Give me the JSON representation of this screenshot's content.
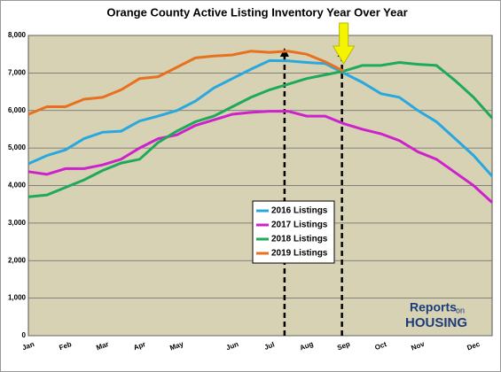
{
  "chart_data": {
    "type": "line",
    "title": "Orange County Active Listing Inventory Year Over Year",
    "categories": [
      "Jan",
      null,
      "Feb",
      null,
      "Mar",
      null,
      "Apr",
      null,
      "May",
      null,
      null,
      "Jun",
      null,
      "Jul",
      null,
      "Aug",
      null,
      "Sep",
      null,
      "Oct",
      null,
      "Nov",
      null,
      null,
      "Dec",
      null
    ],
    "series": [
      {
        "name": "2016 Listings",
        "color": "#29a8df",
        "values": [
          4580,
          4800,
          4950,
          5250,
          5420,
          5450,
          5720,
          5850,
          6000,
          6250,
          6600,
          6850,
          7100,
          7330,
          7320,
          7280,
          7250,
          7000,
          6750,
          6450,
          6350,
          6000,
          5700,
          5250,
          4800,
          4250
        ]
      },
      {
        "name": "2017 Listings",
        "color": "#cc22cc",
        "values": [
          4370,
          4300,
          4450,
          4450,
          4550,
          4700,
          5000,
          5250,
          5350,
          5600,
          5750,
          5900,
          5950,
          5980,
          5980,
          5850,
          5850,
          5650,
          5500,
          5380,
          5200,
          4900,
          4700,
          4350,
          4000,
          3550
        ]
      },
      {
        "name": "2018 Listings",
        "color": "#1eaa5a",
        "values": [
          3700,
          3750,
          3950,
          4150,
          4400,
          4600,
          4700,
          5150,
          5450,
          5700,
          5850,
          6100,
          6350,
          6550,
          6700,
          6850,
          6950,
          7050,
          7200,
          7200,
          7280,
          7230,
          7200,
          6800,
          6350,
          5800
        ]
      },
      {
        "name": "2019 Listings",
        "color": "#e8711f",
        "values": [
          5900,
          6100,
          6100,
          6300,
          6350,
          6550,
          6850,
          6900,
          7150,
          7400,
          7450,
          7480,
          7580,
          7550,
          7580,
          7500,
          7300,
          7050,
          null,
          null,
          null,
          null,
          null,
          null,
          null,
          null
        ]
      }
    ],
    "ylim": [
      0,
      8000
    ],
    "yticks": [
      0,
      {
        "value": 1000,
        "label": "1,000"
      },
      {
        "value": 2000,
        "label": "2,000"
      },
      {
        "value": 3000,
        "label": "3,000"
      },
      {
        "value": 4000,
        "label": "4,000"
      },
      {
        "value": 5000,
        "label": "5,000"
      },
      {
        "value": 6000,
        "label": "6,000"
      },
      {
        "value": 7000,
        "label": "7,000"
      },
      {
        "value": 8000,
        "label": "8,000"
      }
    ],
    "grid": true,
    "logo": [
      "Reports",
      "on",
      "HOUSING"
    ]
  }
}
